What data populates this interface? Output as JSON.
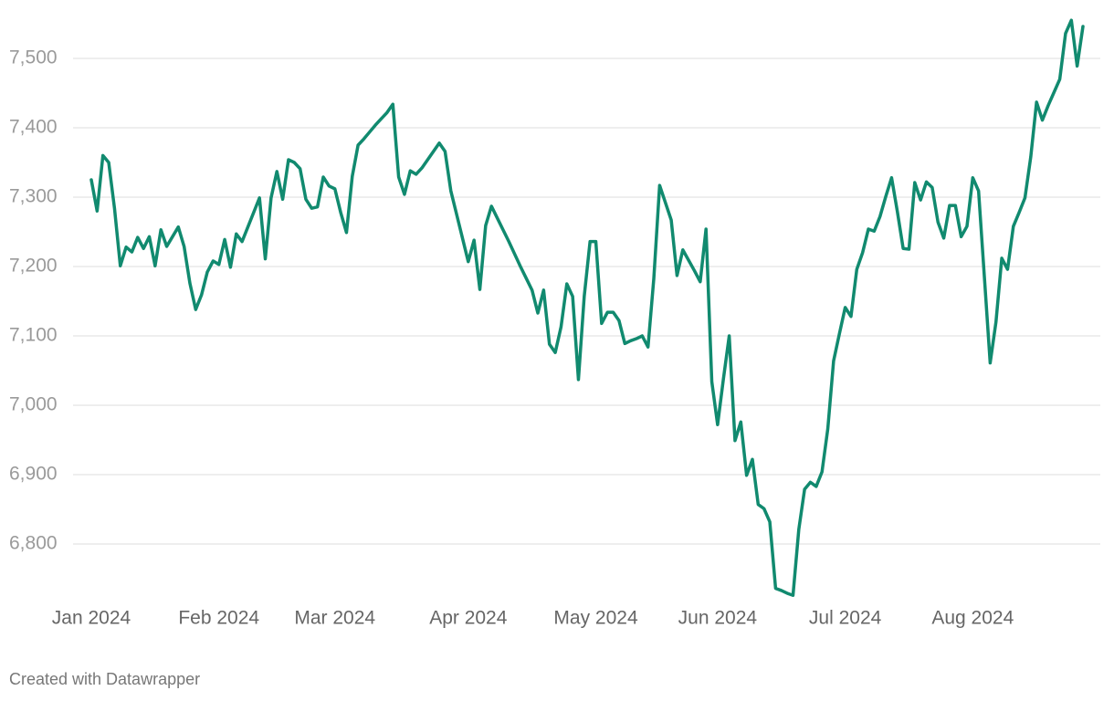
{
  "chart_data": {
    "type": "line",
    "credit": "Created with Datawrapper",
    "color": "#118a6f",
    "grid": true,
    "ylim": [
      6720,
      7560
    ],
    "yticks": [
      {
        "value": 6800,
        "label": "6,800"
      },
      {
        "value": 6900,
        "label": "6,900"
      },
      {
        "value": 7000,
        "label": "7,000"
      },
      {
        "value": 7100,
        "label": "7,100"
      },
      {
        "value": 7200,
        "label": "7,200"
      },
      {
        "value": 7300,
        "label": "7,300"
      },
      {
        "value": 7400,
        "label": "7,400"
      },
      {
        "value": 7500,
        "label": "7,500"
      }
    ],
    "categories": [
      "Jan 2024",
      null,
      null,
      null,
      null,
      null,
      null,
      null,
      null,
      null,
      null,
      null,
      null,
      null,
      null,
      null,
      null,
      null,
      null,
      null,
      null,
      null,
      "Feb 2024",
      null,
      null,
      null,
      null,
      null,
      null,
      null,
      null,
      null,
      null,
      null,
      null,
      null,
      null,
      null,
      null,
      null,
      null,
      null,
      "Mar 2024",
      null,
      null,
      null,
      null,
      null,
      null,
      null,
      null,
      null,
      null,
      null,
      null,
      null,
      null,
      null,
      null,
      null,
      null,
      null,
      null,
      null,
      null,
      "Apr 2024",
      null,
      null,
      null,
      null,
      null,
      null,
      null,
      null,
      null,
      null,
      null,
      null,
      null,
      null,
      null,
      null,
      null,
      null,
      null,
      null,
      null,
      "May 2024",
      null,
      null,
      null,
      null,
      null,
      null,
      null,
      null,
      null,
      null,
      null,
      null,
      null,
      null,
      null,
      null,
      null,
      null,
      null,
      null,
      "Jun 2024",
      null,
      null,
      null,
      null,
      null,
      null,
      null,
      null,
      null,
      null,
      null,
      null,
      null,
      null,
      null,
      null,
      null,
      null,
      null,
      null,
      null,
      "Jul 2024",
      null,
      null,
      null,
      null,
      null,
      null,
      null,
      null,
      null,
      null,
      null,
      null,
      null,
      null,
      null,
      null,
      null,
      null,
      null,
      null,
      null,
      "Aug 2024",
      null,
      null,
      null,
      null,
      null,
      null,
      null,
      null,
      null,
      null,
      null,
      null,
      null,
      null,
      null,
      null,
      null,
      null,
      null
    ],
    "values": [
      7325,
      7280,
      7360,
      7350,
      7284,
      7201,
      7228,
      7221,
      7242,
      7226,
      7243,
      7201,
      7253,
      7229,
      7243,
      7257,
      7229,
      7176,
      7138,
      7159,
      7192,
      7208,
      7203,
      7239,
      7199,
      7247,
      7236,
      7257,
      7278,
      7299,
      7211,
      7299,
      7337,
      7297,
      7354,
      7350,
      7341,
      7297,
      7284,
      7286,
      7329,
      7316,
      7312,
      7278,
      7249,
      7330,
      7375,
      7384,
      7394,
      7404,
      7413,
      7422,
      7434,
      7329,
      7304,
      7338,
      7333,
      7342,
      7354,
      7366,
      7378,
      7366,
      7309,
      7275,
      7241,
      7207,
      7238,
      7167,
      7259,
      7287,
      7270,
      7253,
      7236,
      7218,
      7200,
      7183,
      7166,
      7133,
      7166,
      7088,
      7076,
      7113,
      7175,
      7157,
      7037,
      7157,
      7236,
      7236,
      7118,
      7134,
      7134,
      7122,
      7089,
      7093,
      7096,
      7100,
      7084,
      7183,
      7317,
      7292,
      7267,
      7187,
      7224,
      7209,
      7194,
      7178,
      7254,
      7034,
      6972,
      7038,
      7100,
      6949,
      6976,
      6899,
      6922,
      6857,
      6851,
      6832,
      6736,
      6733,
      6729,
      6726,
      6821,
      6879,
      6889,
      6883,
      6904,
      6966,
      7064,
      7103,
      7141,
      7128,
      7196,
      7220,
      7254,
      7251,
      7272,
      7301,
      7328,
      7279,
      7226,
      7225,
      7321,
      7296,
      7322,
      7314,
      7264,
      7241,
      7288,
      7288,
      7243,
      7258,
      7328,
      7309,
      7185,
      7061,
      7120,
      7212,
      7196,
      7258,
      7278,
      7299,
      7358,
      7437,
      7411,
      7432,
      7451,
      7470,
      7536,
      7555,
      7489,
      7546
    ]
  }
}
